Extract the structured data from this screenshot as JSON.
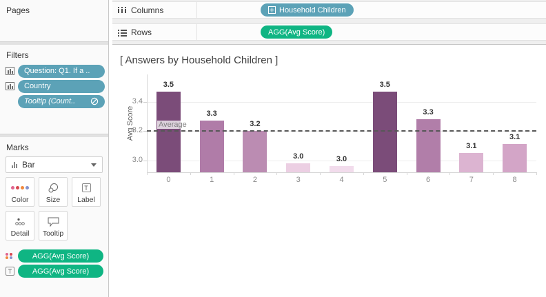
{
  "sidebar": {
    "pages": {
      "title": "Pages"
    },
    "filters": {
      "title": "Filters",
      "pills": [
        {
          "label": "Question: Q1. If a ..",
          "icon": "data-grid-icon",
          "style": "normal"
        },
        {
          "label": "Country",
          "icon": "data-grid-icon",
          "style": "normal"
        },
        {
          "label": "Tooltip (Count..",
          "icon": "slash-circle-icon",
          "style": "italic"
        }
      ]
    },
    "marks": {
      "title": "Marks",
      "mark_type": "Bar",
      "buttons": [
        {
          "label": "Color",
          "icon": "color-dots-icon"
        },
        {
          "label": "Size",
          "icon": "size-circles-icon"
        },
        {
          "label": "Label",
          "icon": "text-box-icon"
        },
        {
          "label": "Detail",
          "icon": "detail-dots-icon"
        },
        {
          "label": "Tooltip",
          "icon": "speech-bubble-icon"
        }
      ],
      "pills": [
        {
          "label": "AGG(Avg Score)",
          "icon": "color-dots-icon"
        },
        {
          "label": "AGG(Avg Score)",
          "icon": "text-box-icon"
        }
      ]
    }
  },
  "shelves": {
    "columns": {
      "label": "Columns",
      "pill": "Household Children",
      "pill_icon": "plus-box-icon"
    },
    "rows": {
      "label": "Rows",
      "pill": "AGG(Avg Score)"
    }
  },
  "view": {
    "title": "[ Answers by Household Children ]"
  },
  "colors": {
    "dimension_pill": "#5ca2b7",
    "measure_pill": "#0fb583",
    "ref_line": "#575757"
  },
  "chart_data": {
    "type": "bar",
    "title": "[ Answers by Household Children ]",
    "xlabel": "",
    "ylabel": "Avg Score",
    "categories": [
      "0",
      "1",
      "2",
      "3",
      "4",
      "5",
      "6",
      "7",
      "8"
    ],
    "values": [
      3.47,
      3.27,
      3.2,
      2.98,
      2.96,
      3.47,
      3.28,
      3.05,
      3.11
    ],
    "bar_labels": [
      "3.5",
      "3.3",
      "3.2",
      "3.0",
      "3.0",
      "3.5",
      "3.3",
      "3.1",
      "3.1"
    ],
    "bar_colors": [
      "#7b4c79",
      "#b07ca8",
      "#bb8cb2",
      "#eccfe3",
      "#f2dcec",
      "#7b4c79",
      "#b17ea9",
      "#dcb4d1",
      "#d3a5c7"
    ],
    "y_ticks": [
      3.4,
      3.2,
      3.0
    ],
    "y_tick_labels": [
      "3.4",
      "3.2",
      "3.0"
    ],
    "ylim": [
      2.918,
      3.586
    ],
    "grid": true,
    "legend": false,
    "ref_line": {
      "value": 3.2,
      "label": "Average"
    }
  }
}
